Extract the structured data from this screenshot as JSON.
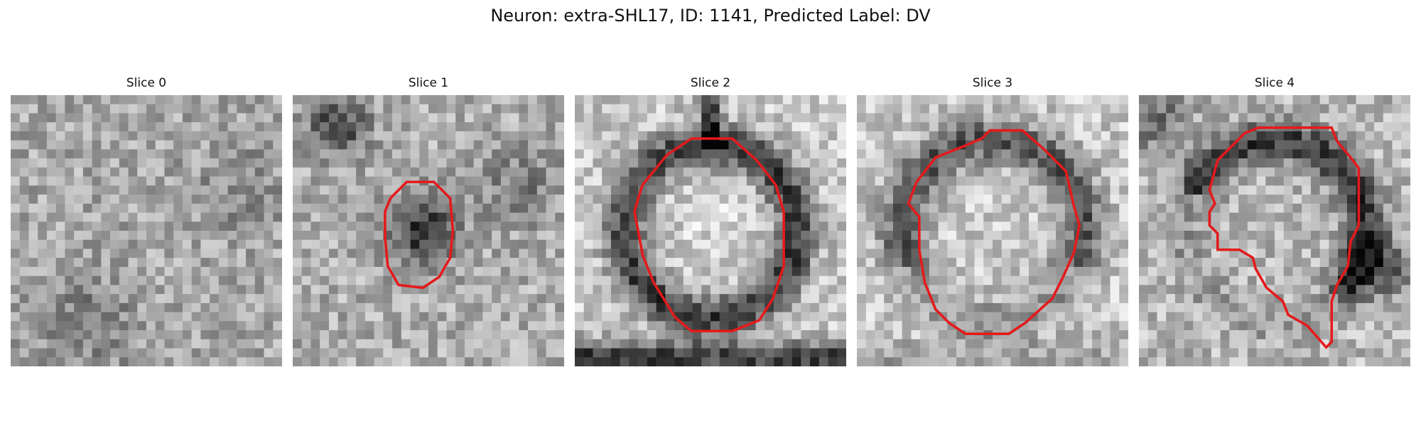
{
  "figure": {
    "title": "Neuron: extra-SHL17, ID: 1141, Predicted Label: DV"
  },
  "panels": [
    {
      "title": "Slice 0",
      "seed": 11,
      "pattern": "noise",
      "contour": []
    },
    {
      "title": "Slice 1",
      "seed": 23,
      "pattern": "blob",
      "contour": [
        [
          0.36,
          0.38
        ],
        [
          0.42,
          0.32
        ],
        [
          0.52,
          0.32
        ],
        [
          0.58,
          0.38
        ],
        [
          0.59,
          0.5
        ],
        [
          0.58,
          0.6
        ],
        [
          0.54,
          0.67
        ],
        [
          0.48,
          0.71
        ],
        [
          0.39,
          0.7
        ],
        [
          0.35,
          0.63
        ],
        [
          0.34,
          0.52
        ],
        [
          0.34,
          0.43
        ],
        [
          0.36,
          0.38
        ]
      ]
    },
    {
      "title": "Slice 2",
      "seed": 37,
      "pattern": "ring",
      "contour": [
        [
          0.25,
          0.33
        ],
        [
          0.34,
          0.22
        ],
        [
          0.43,
          0.16
        ],
        [
          0.58,
          0.16
        ],
        [
          0.67,
          0.24
        ],
        [
          0.74,
          0.33
        ],
        [
          0.77,
          0.43
        ],
        [
          0.77,
          0.63
        ],
        [
          0.73,
          0.75
        ],
        [
          0.68,
          0.83
        ],
        [
          0.58,
          0.87
        ],
        [
          0.43,
          0.87
        ],
        [
          0.37,
          0.82
        ],
        [
          0.29,
          0.69
        ],
        [
          0.25,
          0.59
        ],
        [
          0.22,
          0.43
        ],
        [
          0.24,
          0.36
        ],
        [
          0.25,
          0.33
        ]
      ]
    },
    {
      "title": "Slice 3",
      "seed": 51,
      "pattern": "ring2",
      "contour": [
        [
          0.22,
          0.32
        ],
        [
          0.29,
          0.23
        ],
        [
          0.39,
          0.19
        ],
        [
          0.46,
          0.16
        ],
        [
          0.49,
          0.13
        ],
        [
          0.61,
          0.13
        ],
        [
          0.69,
          0.2
        ],
        [
          0.77,
          0.28
        ],
        [
          0.8,
          0.41
        ],
        [
          0.82,
          0.48
        ],
        [
          0.8,
          0.58
        ],
        [
          0.76,
          0.67
        ],
        [
          0.72,
          0.75
        ],
        [
          0.62,
          0.84
        ],
        [
          0.56,
          0.88
        ],
        [
          0.4,
          0.88
        ],
        [
          0.34,
          0.84
        ],
        [
          0.29,
          0.79
        ],
        [
          0.25,
          0.69
        ],
        [
          0.23,
          0.57
        ],
        [
          0.23,
          0.45
        ],
        [
          0.19,
          0.4
        ],
        [
          0.22,
          0.32
        ]
      ]
    },
    {
      "title": "Slice 4",
      "seed": 67,
      "pattern": "crescent",
      "contour": [
        [
          0.29,
          0.24
        ],
        [
          0.39,
          0.14
        ],
        [
          0.44,
          0.12
        ],
        [
          0.71,
          0.12
        ],
        [
          0.73,
          0.17
        ],
        [
          0.78,
          0.23
        ],
        [
          0.81,
          0.27
        ],
        [
          0.81,
          0.48
        ],
        [
          0.78,
          0.54
        ],
        [
          0.77,
          0.63
        ],
        [
          0.73,
          0.7
        ],
        [
          0.71,
          0.76
        ],
        [
          0.71,
          0.91
        ],
        [
          0.69,
          0.93
        ],
        [
          0.62,
          0.85
        ],
        [
          0.55,
          0.81
        ],
        [
          0.53,
          0.76
        ],
        [
          0.47,
          0.71
        ],
        [
          0.43,
          0.64
        ],
        [
          0.42,
          0.6
        ],
        [
          0.37,
          0.57
        ],
        [
          0.29,
          0.57
        ],
        [
          0.29,
          0.51
        ],
        [
          0.26,
          0.48
        ],
        [
          0.26,
          0.43
        ],
        [
          0.28,
          0.4
        ],
        [
          0.26,
          0.35
        ],
        [
          0.29,
          0.24
        ]
      ]
    }
  ],
  "colors": {
    "contour": "#e41a1c"
  }
}
